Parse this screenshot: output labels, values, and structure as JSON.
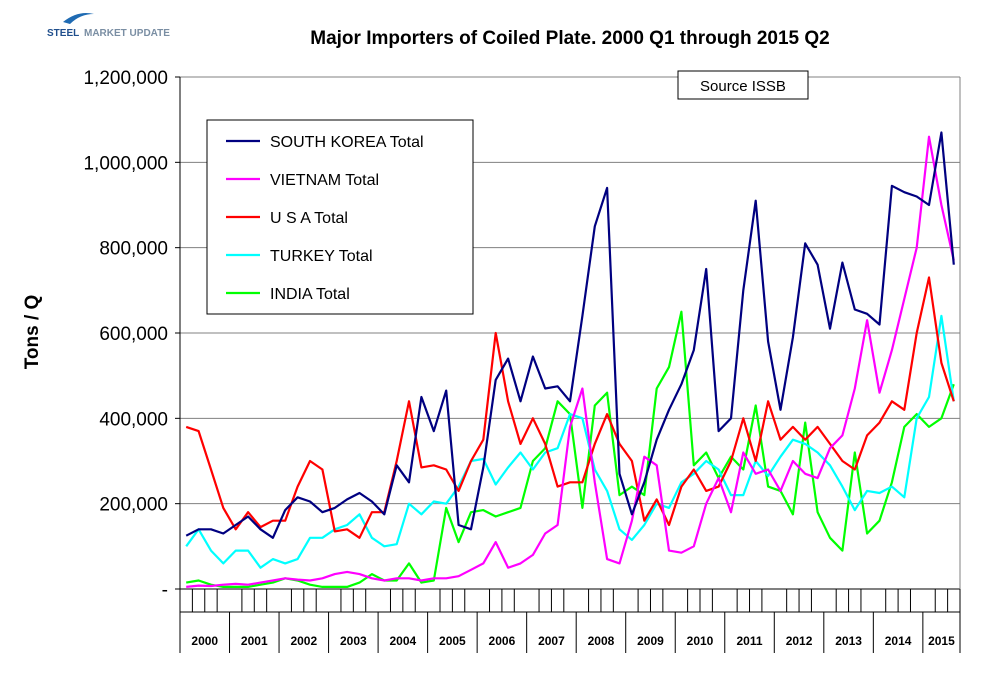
{
  "logo": {
    "word1": "STEEL",
    "word2": "MARKET UPDATE"
  },
  "chart_data": {
    "type": "line",
    "title": "Major Importers of Coiled Plate. 2000 Q1 through 2015 Q2",
    "ylabel": "Tons / Q",
    "xlabel": "",
    "ylim": [
      0,
      1200000
    ],
    "yticks": [
      0,
      200000,
      400000,
      600000,
      800000,
      1000000,
      1200000
    ],
    "ytick_labels": [
      "-",
      "200,000",
      "400,000",
      "600,000",
      "800,000",
      "1,000,000",
      "1,200,000"
    ],
    "year_labels": [
      "2000",
      "2001",
      "2002",
      "2003",
      "2004",
      "2005",
      "2006",
      "2007",
      "2008",
      "2009",
      "2010",
      "2011",
      "2012",
      "2013",
      "2014",
      "2015"
    ],
    "annotation": "Source ISSB",
    "grid": "horizontal",
    "legend_position": "upper-left",
    "series": [
      {
        "name": "SOUTH KOREA Total",
        "color": "#000080",
        "values": [
          125000,
          140000,
          140000,
          130000,
          150000,
          170000,
          140000,
          120000,
          185000,
          215000,
          205000,
          180000,
          190000,
          210000,
          225000,
          205000,
          175000,
          290000,
          250000,
          450000,
          370000,
          465000,
          150000,
          140000,
          285000,
          490000,
          540000,
          440000,
          545000,
          470000,
          475000,
          440000,
          640000,
          850000,
          940000,
          270000,
          175000,
          250000,
          350000,
          420000,
          480000,
          560000,
          750000,
          370000,
          400000,
          700000,
          910000,
          580000,
          420000,
          590000,
          810000,
          760000,
          610000,
          765000,
          655000,
          645000,
          620000,
          945000,
          930000,
          920000,
          900000,
          1070000,
          760000
        ]
      },
      {
        "name": "VIETNAM Total",
        "color": "#FF00FF",
        "values": [
          5000,
          8000,
          7000,
          10000,
          12000,
          10000,
          15000,
          20000,
          25000,
          22000,
          20000,
          25000,
          35000,
          40000,
          35000,
          25000,
          20000,
          25000,
          25000,
          20000,
          25000,
          25000,
          30000,
          45000,
          60000,
          110000,
          50000,
          60000,
          80000,
          130000,
          150000,
          380000,
          470000,
          250000,
          70000,
          60000,
          160000,
          310000,
          290000,
          90000,
          85000,
          100000,
          200000,
          260000,
          180000,
          320000,
          270000,
          280000,
          230000,
          300000,
          270000,
          260000,
          330000,
          360000,
          470000,
          630000,
          460000,
          560000,
          680000,
          800000,
          1060000,
          900000,
          770000
        ]
      },
      {
        "name": "U S A Total",
        "color": "#FF0000",
        "values": [
          380000,
          370000,
          280000,
          190000,
          140000,
          180000,
          145000,
          160000,
          160000,
          240000,
          300000,
          280000,
          135000,
          140000,
          120000,
          180000,
          180000,
          300000,
          440000,
          285000,
          290000,
          280000,
          230000,
          300000,
          350000,
          600000,
          440000,
          340000,
          400000,
          340000,
          240000,
          250000,
          250000,
          340000,
          410000,
          340000,
          300000,
          160000,
          210000,
          150000,
          240000,
          280000,
          230000,
          240000,
          300000,
          400000,
          300000,
          440000,
          350000,
          380000,
          350000,
          380000,
          340000,
          300000,
          280000,
          360000,
          390000,
          440000,
          420000,
          600000,
          730000,
          530000,
          440000
        ]
      },
      {
        "name": "TURKEY Total",
        "color": "#00FFFF",
        "values": [
          100000,
          140000,
          90000,
          60000,
          90000,
          90000,
          50000,
          70000,
          60000,
          70000,
          120000,
          120000,
          140000,
          150000,
          175000,
          120000,
          100000,
          105000,
          200000,
          175000,
          205000,
          200000,
          240000,
          300000,
          305000,
          245000,
          285000,
          320000,
          280000,
          320000,
          330000,
          410000,
          400000,
          280000,
          230000,
          140000,
          115000,
          150000,
          200000,
          190000,
          250000,
          270000,
          300000,
          280000,
          220000,
          220000,
          300000,
          265000,
          310000,
          350000,
          340000,
          320000,
          290000,
          240000,
          185000,
          230000,
          225000,
          240000,
          215000,
          400000,
          450000,
          640000,
          440000
        ]
      },
      {
        "name": "INDIA Total",
        "color": "#00FF00",
        "values": [
          15000,
          20000,
          10000,
          5000,
          5000,
          5000,
          10000,
          15000,
          25000,
          20000,
          10000,
          5000,
          5000,
          5000,
          15000,
          35000,
          20000,
          20000,
          60000,
          15000,
          20000,
          190000,
          110000,
          180000,
          185000,
          170000,
          180000,
          190000,
          300000,
          330000,
          440000,
          410000,
          190000,
          430000,
          460000,
          220000,
          240000,
          220000,
          470000,
          520000,
          650000,
          290000,
          320000,
          260000,
          310000,
          280000,
          430000,
          240000,
          230000,
          175000,
          390000,
          180000,
          120000,
          90000,
          320000,
          130000,
          160000,
          250000,
          380000,
          410000,
          380000,
          400000,
          480000
        ]
      }
    ]
  }
}
